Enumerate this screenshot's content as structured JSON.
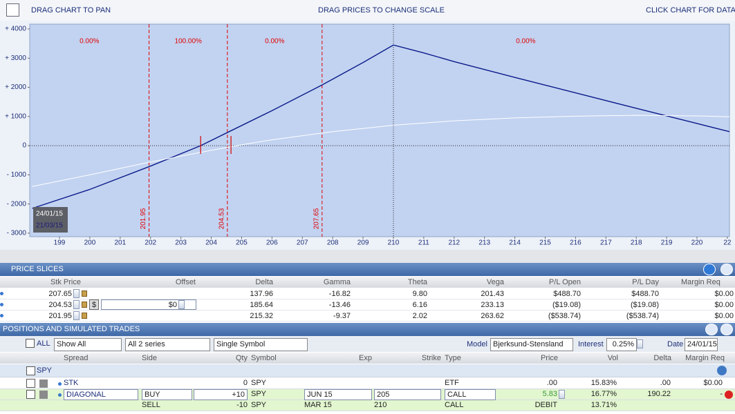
{
  "toolbar": {
    "pan": "DRAG CHART TO PAN",
    "scale": "DRAG PRICES TO CHANGE SCALE",
    "data": "CLICK CHART FOR DATA"
  },
  "chart_data": {
    "type": "line",
    "xlim": [
      198.02,
      221.07
    ],
    "ylim": [
      -3120,
      4165
    ],
    "xticks": [
      199,
      200,
      201,
      202,
      203,
      204,
      205,
      206,
      207,
      208,
      209,
      210,
      211,
      212,
      213,
      214,
      215,
      216,
      217,
      218,
      219,
      220,
      {
        "value": 221,
        "label": "22"
      }
    ],
    "yticks": [
      {
        "value": 4000,
        "label": "+ 4000"
      },
      {
        "value": 3000,
        "label": "+ 3000"
      },
      {
        "value": 2000,
        "label": "+ 2000"
      },
      {
        "value": 1000,
        "label": "+ 1000"
      },
      0,
      {
        "value": -1000,
        "label": "- 1000"
      },
      {
        "value": -2000,
        "label": "- 2000"
      },
      {
        "value": -3000,
        "label": "- 3000"
      }
    ],
    "series": [
      {
        "color": "#0b1a8a",
        "x": [
          198.1,
          200,
          202,
          203.65,
          204.53,
          206,
          207.65,
          209,
          210,
          211,
          212,
          214,
          216,
          218,
          220,
          221.07
        ],
        "values": [
          -2150,
          -1500,
          -700,
          0,
          450,
          1200,
          2080,
          2850,
          3450,
          3180,
          2880,
          2340,
          1810,
          1280,
          760,
          480
        ]
      },
      {
        "color": "#ffffff",
        "x": [
          198.1,
          200,
          202,
          204,
          205,
          206,
          208,
          210,
          212,
          214,
          216,
          218,
          220,
          221.07
        ],
        "values": [
          -1400,
          -1000,
          -560,
          -160,
          30,
          200,
          480,
          700,
          850,
          950,
          1010,
          1040,
          1020,
          990
        ]
      }
    ],
    "price_lines": [
      201.95,
      204.53,
      207.65
    ],
    "price_line_color": "#e00000",
    "probabilities": {
      "values": [
        0,
        100,
        0,
        0
      ],
      "value_labels": [
        "0.00%",
        "100.00%",
        "0.00%",
        "0.00%"
      ]
    },
    "strike_line": 210,
    "breakeven_marks": [
      203.65,
      204.65
    ],
    "dates": [
      "24/01/15",
      "21/03/15"
    ]
  },
  "price_slices": {
    "title": "PRICE SLICES",
    "dollar_button": "$",
    "columns": [
      "Stk Price",
      "Offset",
      "Delta",
      "Gamma",
      "Theta",
      "Vega",
      "P/L Open",
      "P/L Day",
      "Margin Req"
    ],
    "rows": [
      {
        "stk_price": "207.65",
        "delta": "137.96",
        "gamma": "-16.82",
        "theta": "9.80",
        "vega": "201.43",
        "pl_open": "$488.70",
        "pl_day": "$488.70",
        "margin_req": "$0.00"
      },
      {
        "stk_price": "204.53",
        "offset": "$0",
        "delta": "185.64",
        "gamma": "-13.46",
        "theta": "6.16",
        "vega": "233.13",
        "pl_open": "($19.08)",
        "pl_day": "($19.08)",
        "margin_req": "$0.00"
      },
      {
        "stk_price": "201.95",
        "delta": "215.32",
        "gamma": "-9.37",
        "theta": "2.02",
        "vega": "263.62",
        "pl_open": "($538.74)",
        "pl_day": "($538.74)",
        "margin_req": "$0.00"
      }
    ]
  },
  "positions": {
    "title": "POSITIONS AND SIMULATED TRADES",
    "filter": {
      "all": "ALL",
      "show": "Show All",
      "series": "All 2 series",
      "symbol": "Single Symbol",
      "model_label": "Model",
      "model": "Bjerksund-Stensland",
      "interest_label": "Interest",
      "interest": "0.25%",
      "date_label": "Date",
      "date": "24/01/15"
    },
    "columns": [
      "Spread",
      "Side",
      "Qty",
      "Symbol",
      "Exp",
      "Strike",
      "Type",
      "Price",
      "Vol",
      "Delta",
      "Margin Req"
    ],
    "group": "SPY",
    "rows": [
      {
        "spread": "STK",
        "qty": "0",
        "symbol": "SPY",
        "type": "ETF",
        "price": ".00",
        "vol": "15.83%",
        "delta": ".00",
        "margin_req": "$0.00"
      },
      {
        "spread": "DIAGONAL",
        "side": "BUY",
        "qty": "+10",
        "symbol": "SPY",
        "exp": "JUN 15",
        "strike": "205",
        "type": "CALL",
        "price": "5.83",
        "vol": "16.77%",
        "delta": "190.22",
        "margin_req": "-"
      },
      {
        "side": "SELL",
        "qty": "-10",
        "symbol": "SPY",
        "exp": "MAR 15",
        "strike": "210",
        "type": "CALL",
        "price": "DEBIT",
        "vol": "13.71%"
      }
    ]
  }
}
